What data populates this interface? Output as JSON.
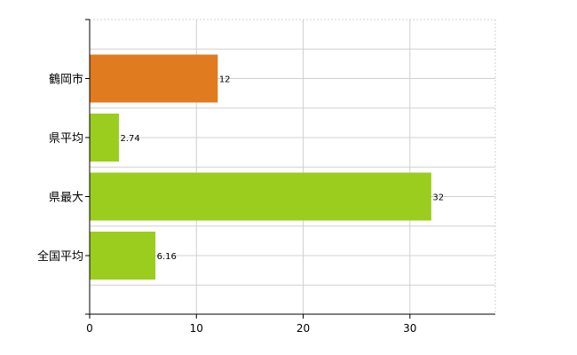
{
  "chart_data": {
    "type": "bar",
    "orientation": "horizontal",
    "categories": [
      "鶴岡市",
      "県平均",
      "県最大",
      "全国平均"
    ],
    "values": [
      12,
      2.74,
      32,
      6.16
    ],
    "data_labels": [
      "12",
      "2.74",
      "32",
      "6.16"
    ],
    "colors": [
      "#e07b20",
      "#9acd1e",
      "#9acd1e",
      "#9acd1e"
    ],
    "xlim": [
      0,
      38
    ],
    "xticks": [
      0,
      10,
      20,
      30
    ],
    "xtick_labels": [
      "0",
      "10",
      "20",
      "30"
    ],
    "grid": true,
    "title": "",
    "xlabel": "",
    "ylabel": ""
  }
}
